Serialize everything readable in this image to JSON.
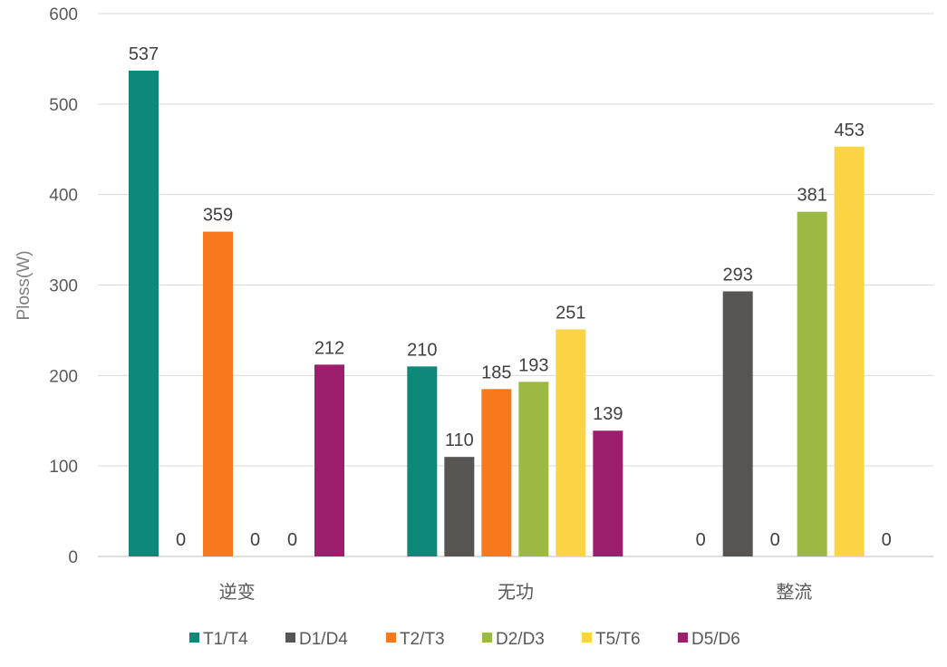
{
  "chart_data": {
    "type": "bar",
    "title": "",
    "xlabel": "",
    "ylabel": "Ploss(W)",
    "ylim": [
      0,
      600
    ],
    "yticks": [
      0,
      100,
      200,
      300,
      400,
      500,
      600
    ],
    "grid": true,
    "legend_position": "bottom",
    "categories": [
      "逆变",
      "无功",
      "整流"
    ],
    "series": [
      {
        "name": "T1/T4",
        "color": "#0E8878",
        "values": [
          537,
          210,
          0
        ]
      },
      {
        "name": "D1/D4",
        "color": "#575452",
        "values": [
          0,
          110,
          293
        ]
      },
      {
        "name": "T2/T3",
        "color": "#F7791B",
        "values": [
          359,
          185,
          0
        ]
      },
      {
        "name": "D2/D3",
        "color": "#9CBA43",
        "values": [
          0,
          193,
          381
        ]
      },
      {
        "name": "T5/T6",
        "color": "#FBD443",
        "values": [
          0,
          251,
          453
        ]
      },
      {
        "name": "D5/D6",
        "color": "#9C1E6C",
        "values": [
          212,
          139,
          0
        ]
      }
    ]
  }
}
